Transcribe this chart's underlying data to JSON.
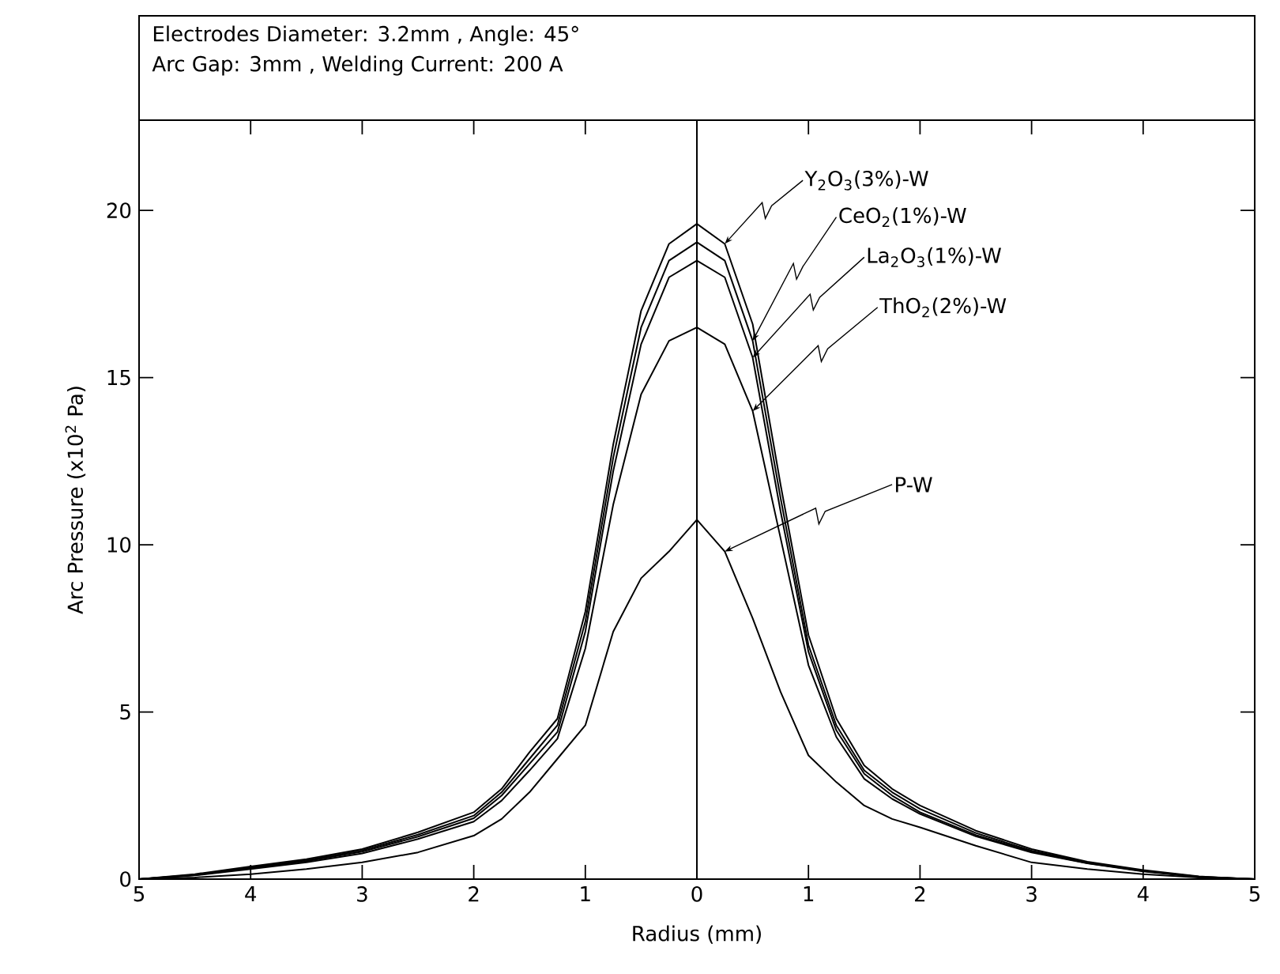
{
  "chart_data": {
    "type": "line",
    "title": "Electrodes Diameter: 3.2mm , Angle: 45°",
    "subtitle": "Arc Gap: 3mm , Welding Current: 200 A",
    "xlabel": "Radius (mm)",
    "ylabel": "Arc Pressure (x10$^{2}$ Pa)",
    "x": [
      -5,
      -4.5,
      -4,
      -3.5,
      -3,
      -2.5,
      -2,
      -1.75,
      -1.5,
      -1.25,
      -1,
      -0.75,
      -0.5,
      -0.25,
      0,
      0.25,
      0.5,
      0.75,
      1,
      1.25,
      1.5,
      1.75,
      2,
      2.5,
      3,
      3.5,
      4,
      4.5,
      5
    ],
    "series": [
      {
        "name": "Y$_{2}$O$_{3}$(3%)-W",
        "color": "#000000",
        "values": [
          0,
          0.15,
          0.38,
          0.6,
          0.9,
          1.4,
          2.0,
          2.7,
          3.8,
          4.8,
          8.0,
          13.0,
          17.0,
          19.0,
          19.6,
          19.0,
          16.6,
          11.8,
          7.3,
          4.8,
          3.4,
          2.7,
          2.2,
          1.45,
          0.9,
          0.52,
          0.27,
          0.08,
          0
        ]
      },
      {
        "name": "CeO$_{2}$(1%)-W",
        "color": "#000000",
        "values": [
          0,
          0.13,
          0.35,
          0.57,
          0.86,
          1.33,
          1.9,
          2.6,
          3.6,
          4.6,
          7.7,
          12.6,
          16.5,
          18.5,
          19.05,
          18.5,
          16.1,
          11.4,
          7.0,
          4.6,
          3.25,
          2.6,
          2.1,
          1.38,
          0.85,
          0.5,
          0.25,
          0.07,
          0
        ]
      },
      {
        "name": "La$_{2}$O$_{3}$(1%)-W",
        "color": "#000000",
        "values": [
          0,
          0.12,
          0.33,
          0.54,
          0.82,
          1.27,
          1.82,
          2.5,
          3.45,
          4.4,
          7.4,
          12.2,
          16.0,
          18.0,
          18.5,
          18.0,
          15.6,
          11.0,
          6.8,
          4.45,
          3.15,
          2.5,
          2.0,
          1.32,
          0.82,
          0.48,
          0.24,
          0.07,
          0
        ]
      },
      {
        "name": "ThO$_{2}$(2%)-W",
        "color": "#000000",
        "values": [
          0,
          0.11,
          0.3,
          0.5,
          0.77,
          1.2,
          1.72,
          2.35,
          3.25,
          4.2,
          6.9,
          11.2,
          14.5,
          16.1,
          16.5,
          16.0,
          14.0,
          10.2,
          6.4,
          4.25,
          3.0,
          2.4,
          1.95,
          1.28,
          0.8,
          0.47,
          0.23,
          0.06,
          0
        ]
      },
      {
        "name": "P-W",
        "color": "#000000",
        "values": [
          0,
          0.05,
          0.15,
          0.3,
          0.5,
          0.8,
          1.3,
          1.8,
          2.6,
          3.6,
          4.6,
          7.4,
          9.0,
          9.8,
          10.75,
          9.8,
          7.8,
          5.6,
          3.7,
          2.9,
          2.2,
          1.8,
          1.55,
          1.0,
          0.5,
          0.3,
          0.15,
          0.05,
          0
        ]
      }
    ],
    "xlim": [
      -5,
      5
    ],
    "ylim": [
      0,
      22.7
    ],
    "xticks": [
      {
        "value": -5,
        "label": "5"
      },
      {
        "value": -4,
        "label": "4"
      },
      {
        "value": -3,
        "label": "3"
      },
      {
        "value": -2,
        "label": "2"
      },
      {
        "value": -1,
        "label": "1"
      },
      0,
      1,
      2,
      3,
      4,
      5
    ],
    "yticks": [
      0,
      5,
      10,
      15,
      20
    ],
    "ref_lines": [
      {
        "axis": "x",
        "value": 0,
        "color": "#000000"
      }
    ]
  }
}
